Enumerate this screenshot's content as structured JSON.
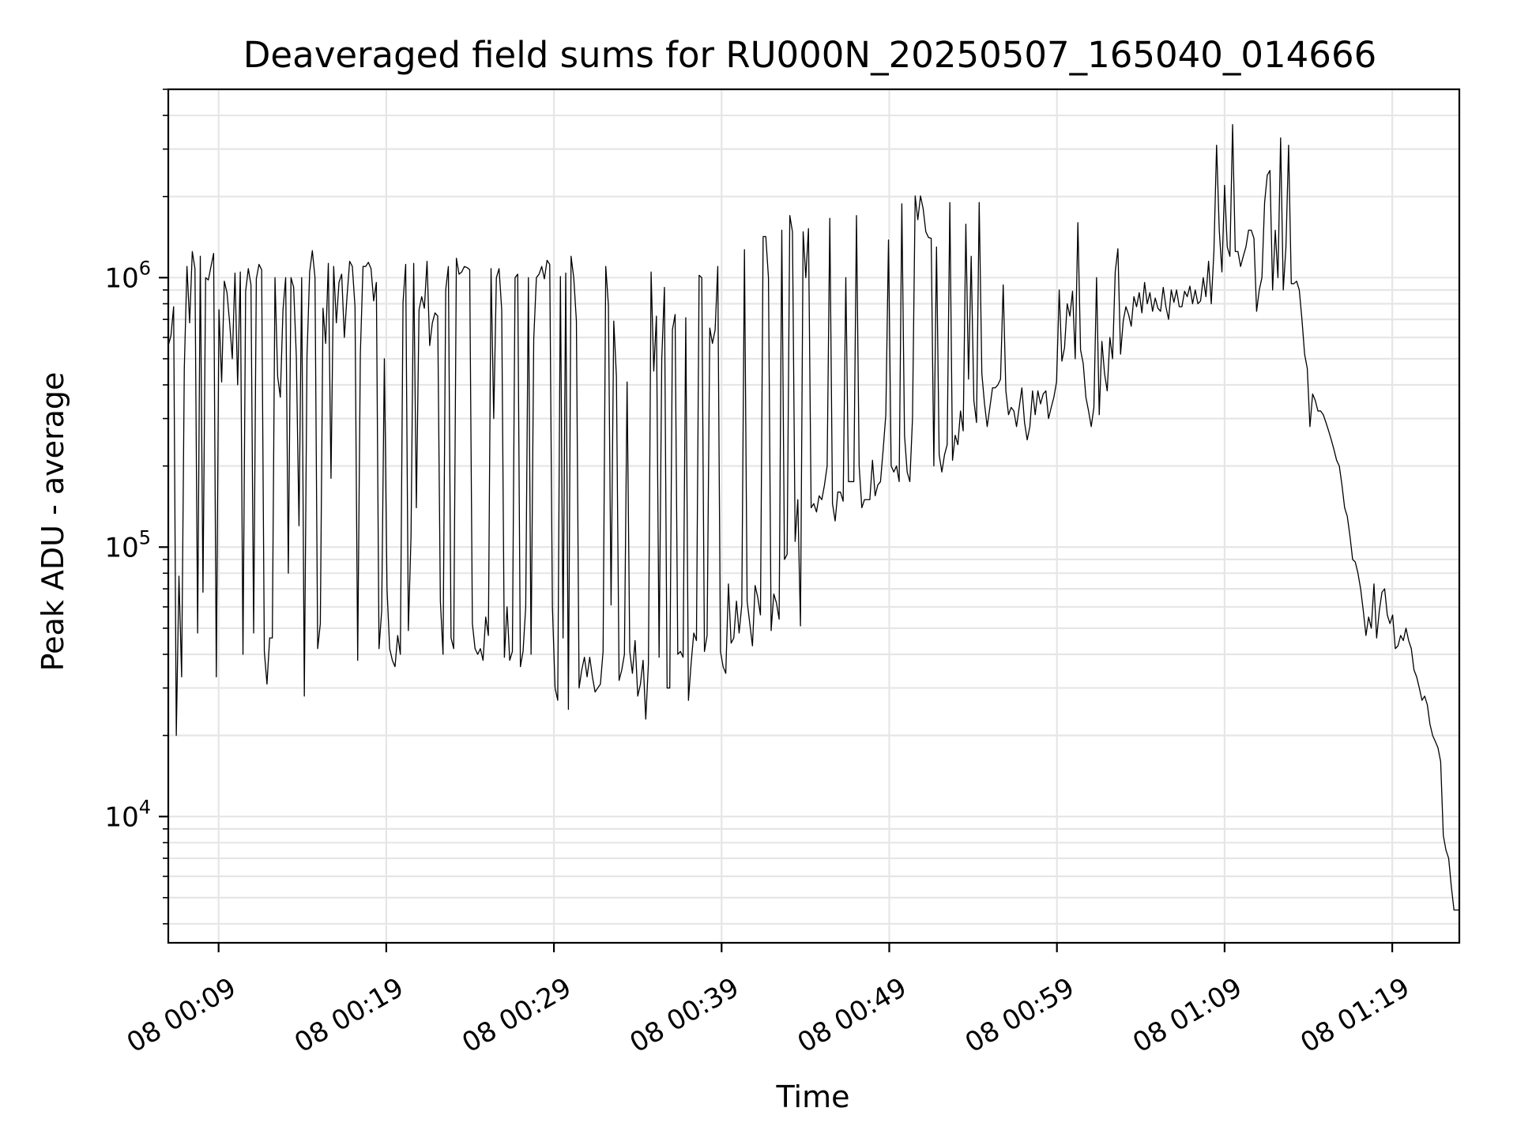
{
  "chart_data": {
    "type": "line",
    "title": "Deaveraged field sums for RU000N_20250507_165040_014666",
    "xlabel": "Time",
    "ylabel": "Peak ADU - average",
    "y_scale": "log",
    "ylim": [
      3400,
      5000000
    ],
    "xlim": [
      "08 00:06",
      "08 01:23"
    ],
    "grid": true,
    "line_color": "#000000",
    "grid_color": "#e6e6e6",
    "x_ticks": [
      "08 00:09",
      "08 00:19",
      "08 00:29",
      "08 00:39",
      "08 00:49",
      "08 00:59",
      "08 01:09",
      "08 01:19"
    ],
    "y_ticks": [
      {
        "base": "10",
        "exp": "4",
        "value": 10000
      },
      {
        "base": "10",
        "exp": "5",
        "value": 100000
      },
      {
        "base": "10",
        "exp": "6",
        "value": 1000000
      }
    ],
    "series": [
      {
        "x_start": "08 00:06",
        "x_end": "08 01:23",
        "values": [
          560000,
          610000,
          780000,
          20000,
          78000,
          33000,
          460000,
          1100000,
          680000,
          1250000,
          1080000,
          48000,
          1200000,
          68000,
          1000000,
          980000,
          1100000,
          1230000,
          33000,
          760000,
          410000,
          970000,
          880000,
          680000,
          500000,
          1040000,
          400000,
          1050000,
          40000,
          890000,
          1080000,
          940000,
          48000,
          990000,
          1120000,
          1070000,
          41000,
          31000,
          46000,
          46000,
          1000000,
          430000,
          360000,
          760000,
          1000000,
          80000,
          1000000,
          920000,
          510000,
          120000,
          1000000,
          28000,
          510000,
          1050000,
          1260000,
          1000000,
          42000,
          52000,
          770000,
          570000,
          1130000,
          180000,
          1100000,
          680000,
          960000,
          1030000,
          600000,
          850000,
          1150000,
          1100000,
          780000,
          38000,
          520000,
          1100000,
          1100000,
          1140000,
          1080000,
          820000,
          960000,
          42000,
          58000,
          500000,
          70000,
          42000,
          38000,
          36000,
          47000,
          40000,
          810000,
          1120000,
          49000,
          110000,
          1130000,
          140000,
          760000,
          850000,
          770000,
          1150000,
          560000,
          680000,
          740000,
          720000,
          63000,
          40000,
          900000,
          1100000,
          46000,
          42000,
          1180000,
          1030000,
          1050000,
          1100000,
          1090000,
          1070000,
          52000,
          42000,
          40000,
          42000,
          38000,
          55000,
          47000,
          1080000,
          300000,
          1000000,
          1080000,
          760000,
          39000,
          60000,
          38000,
          41000,
          1000000,
          1030000,
          36000,
          41000,
          60000,
          1000000,
          40000,
          590000,
          1000000,
          1030000,
          1100000,
          990000,
          1160000,
          1120000,
          60000,
          30000,
          27000,
          1010000,
          46000,
          1040000,
          25000,
          1200000,
          1000000,
          690000,
          30000,
          35000,
          39000,
          33000,
          39000,
          33000,
          29000,
          30000,
          31000,
          41000,
          1100000,
          790000,
          61000,
          690000,
          430000,
          32000,
          35000,
          40000,
          410000,
          41000,
          34000,
          45000,
          28000,
          31000,
          38000,
          23000,
          37000,
          1050000,
          450000,
          720000,
          39000,
          500000,
          920000,
          30000,
          30000,
          640000,
          730000,
          40000,
          41000,
          39000,
          710000,
          27000,
          37000,
          48000,
          45000,
          1020000,
          1000000,
          41000,
          47000,
          650000,
          570000,
          640000,
          1100000,
          41000,
          36000,
          34000,
          73000,
          44000,
          46000,
          63000,
          48000,
          61000,
          1270000,
          63000,
          52000,
          43000,
          72000,
          65000,
          56000,
          1420000,
          1420000,
          1000000,
          49000,
          67000,
          62000,
          54000,
          1500000,
          90000,
          94000,
          1700000,
          1480000,
          105000,
          150000,
          51000,
          1480000,
          1000000,
          1520000,
          140000,
          145000,
          135000,
          155000,
          150000,
          170000,
          200000,
          1660000,
          145000,
          125000,
          160000,
          160000,
          148000,
          1000000,
          175000,
          175000,
          175000,
          1700000,
          200000,
          140000,
          150000,
          150000,
          150000,
          210000,
          155000,
          170000,
          175000,
          230000,
          310000,
          1380000,
          200000,
          190000,
          200000,
          175000,
          1880000,
          260000,
          190000,
          175000,
          300000,
          2010000,
          1640000,
          2010000,
          1800000,
          1480000,
          1410000,
          1400000,
          200000,
          1300000,
          220000,
          190000,
          220000,
          240000,
          1900000,
          210000,
          260000,
          240000,
          320000,
          270000,
          1580000,
          420000,
          1200000,
          350000,
          290000,
          1900000,
          440000,
          340000,
          280000,
          330000,
          390000,
          390000,
          400000,
          420000,
          940000,
          380000,
          310000,
          330000,
          320000,
          280000,
          330000,
          390000,
          290000,
          250000,
          280000,
          380000,
          310000,
          380000,
          340000,
          370000,
          380000,
          300000,
          330000,
          360000,
          410000,
          900000,
          490000,
          550000,
          800000,
          720000,
          890000,
          500000,
          1600000,
          540000,
          480000,
          360000,
          320000,
          280000,
          330000,
          1000000,
          310000,
          580000,
          440000,
          380000,
          600000,
          500000,
          1050000,
          1280000,
          520000,
          690000,
          780000,
          730000,
          660000,
          850000,
          780000,
          880000,
          740000,
          960000,
          800000,
          880000,
          750000,
          840000,
          770000,
          750000,
          920000,
          780000,
          700000,
          900000,
          810000,
          900000,
          780000,
          780000,
          890000,
          850000,
          930000,
          800000,
          900000,
          800000,
          820000,
          1000000,
          850000,
          1150000,
          800000,
          1250000,
          3100000,
          1500000,
          1050000,
          2200000,
          1300000,
          1200000,
          3700000,
          1250000,
          1250000,
          1100000,
          1200000,
          1300000,
          1500000,
          1500000,
          1400000,
          750000,
          900000,
          1000000,
          1900000,
          2400000,
          2500000,
          900000,
          1500000,
          1000000,
          3300000,
          900000,
          1300000,
          3100000,
          950000,
          950000,
          970000,
          900000,
          700000,
          520000,
          460000,
          280000,
          370000,
          350000,
          320000,
          320000,
          310000,
          290000,
          270000,
          250000,
          230000,
          210000,
          200000,
          170000,
          140000,
          130000,
          110000,
          90000,
          88000,
          80000,
          70000,
          58000,
          47000,
          55000,
          50000,
          73000,
          46000,
          58000,
          68000,
          70000,
          56000,
          52000,
          56000,
          42000,
          43000,
          47000,
          45000,
          50000,
          45000,
          42000,
          35000,
          33000,
          30000,
          27000,
          28000,
          26000,
          22000,
          20000,
          19000,
          18000,
          16000,
          8500,
          7500,
          7000,
          5500,
          4500,
          4500,
          4500
        ]
      }
    ]
  }
}
